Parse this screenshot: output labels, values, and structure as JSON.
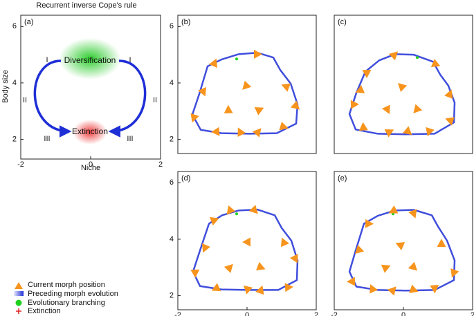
{
  "chart_data": [
    {
      "type": "schematic",
      "panel_label": "(a)",
      "title": "Recurrent inverse Cope's rule",
      "x_label": "Niche",
      "y_label": "Body size",
      "xlim": [
        -2,
        2
      ],
      "ylim": [
        1.3,
        6.4
      ],
      "xticks": [
        -2,
        0,
        2
      ],
      "yticks": [
        2,
        4,
        6
      ],
      "nodes": [
        "Diversification",
        "Extinction"
      ],
      "phase_labels": [
        "I",
        "II",
        "III"
      ]
    },
    {
      "type": "scatter",
      "panel_label": "(b)",
      "xlim": [
        -2,
        2
      ],
      "ylim": [
        1.5,
        6.4
      ],
      "yticks": [
        2,
        4,
        6
      ],
      "color": "#f7941d",
      "line_color": "#1f2fd6",
      "x": [
        -0.94,
        0.3,
        -1.26,
        -0.04,
        1.12,
        -0.54,
        0.36,
        1.42,
        -1.54,
        -0.9,
        -0.2,
        0.32,
        1.06
      ],
      "y": [
        4.71,
        5.02,
        3.68,
        3.88,
        3.88,
        3.05,
        3.05,
        3.17,
        2.76,
        2.27,
        2.27,
        2.27,
        2.44
      ],
      "trajectory": {
        "x": [
          -0.24,
          0.3,
          0.76,
          0.96,
          1.26,
          1.46,
          1.42,
          0.86,
          0.06,
          -0.74,
          -1.34,
          -1.58,
          -1.38,
          -1.14,
          -0.74,
          -0.24
        ],
        "y": [
          5.02,
          5.07,
          4.9,
          4.46,
          3.98,
          3.24,
          2.56,
          2.22,
          2.2,
          2.22,
          2.34,
          2.88,
          3.61,
          4.59,
          4.83,
          5.02
        ]
      },
      "branching": {
        "x": [
          -0.3
        ],
        "y": [
          4.85
        ]
      }
    },
    {
      "type": "scatter",
      "panel_label": "(c)",
      "xlim": [
        -2,
        2
      ],
      "ylim": [
        1.5,
        6.4
      ],
      "color": "#f7941d",
      "line_color": "#1f2fd6",
      "x": [
        -0.26,
        0.94,
        -1.06,
        -1.26,
        -0.06,
        1.34,
        -1.42,
        -0.46,
        0.38,
        1.34,
        -1.16,
        -0.4,
        0.14,
        0.74
      ],
      "y": [
        5.0,
        4.66,
        4.34,
        3.73,
        3.88,
        3.61,
        3.24,
        3.05,
        3.05,
        2.68,
        2.44,
        2.27,
        2.27,
        2.27
      ],
      "trajectory": {
        "x": [
          -0.24,
          0.3,
          0.86,
          1.06,
          1.3,
          1.48,
          1.46,
          0.9,
          0.06,
          -0.74,
          -1.38,
          -1.56,
          -1.36,
          -1.1,
          -0.7,
          -0.24
        ],
        "y": [
          5.02,
          5.0,
          4.75,
          4.3,
          3.9,
          3.3,
          2.6,
          2.2,
          2.18,
          2.2,
          2.35,
          2.9,
          3.65,
          4.4,
          4.8,
          5.02
        ]
      },
      "branching": {
        "x": [
          -0.3,
          0.4
        ],
        "y": [
          4.95,
          4.9
        ]
      }
    },
    {
      "type": "scatter",
      "panel_label": "(d)",
      "xlim": [
        -2,
        2
      ],
      "ylim": [
        1.5,
        6.4
      ],
      "xticks": [
        -2,
        0,
        2
      ],
      "yticks": [
        2,
        4,
        6
      ],
      "color": "#f7941d",
      "line_color": "#1f2fd6",
      "x": [
        -0.94,
        0.22,
        -1.22,
        0.0,
        1.06,
        -0.5,
        0.4,
        -1.5,
        -0.9,
        0.0,
        0.4,
        1.2,
        1.4,
        -0.5
      ],
      "y": [
        4.68,
        5.02,
        3.68,
        3.9,
        3.9,
        3.0,
        3.0,
        2.8,
        2.25,
        2.25,
        2.2,
        2.3,
        3.3,
        5.0
      ],
      "trajectory": {
        "x": [
          -0.24,
          0.3,
          0.8,
          1.0,
          1.28,
          1.46,
          1.44,
          0.9,
          0.06,
          -0.74,
          -1.36,
          -1.56,
          -1.36,
          -1.1,
          -0.72,
          -0.24
        ],
        "y": [
          5.02,
          5.05,
          4.85,
          4.4,
          3.95,
          3.25,
          2.55,
          2.2,
          2.2,
          2.22,
          2.34,
          2.85,
          3.6,
          4.55,
          4.85,
          5.02
        ]
      },
      "branching": {
        "x": [
          -0.3
        ],
        "y": [
          4.9
        ]
      }
    },
    {
      "type": "scatter",
      "panel_label": "(e)",
      "xlim": [
        -2,
        2
      ],
      "ylim": [
        1.5,
        6.4
      ],
      "xticks": [
        -2,
        0,
        2
      ],
      "color": "#f7941d",
      "line_color": "#1f2fd6",
      "x": [
        -1.0,
        0.3,
        -1.3,
        -0.1,
        1.1,
        -0.5,
        0.3,
        1.45,
        -1.5,
        -0.9,
        -0.3,
        0.3,
        0.9,
        -0.3
      ],
      "y": [
        4.55,
        4.9,
        3.6,
        3.8,
        3.85,
        3.0,
        3.0,
        2.8,
        2.5,
        2.25,
        2.2,
        2.2,
        2.25,
        5.0
      ],
      "trajectory": {
        "x": [
          -0.24,
          0.3,
          0.82,
          1.0,
          1.26,
          1.48,
          1.46,
          0.9,
          0.06,
          -0.74,
          -1.36,
          -1.56,
          -1.38,
          -1.14,
          -0.74,
          -0.24
        ],
        "y": [
          5.02,
          5.04,
          4.85,
          4.45,
          3.95,
          3.25,
          2.55,
          2.2,
          2.18,
          2.2,
          2.32,
          2.85,
          3.6,
          4.55,
          4.83,
          5.02
        ]
      },
      "branching": {
        "x": [
          -0.3
        ],
        "y": [
          4.9
        ]
      }
    }
  ],
  "legend": {
    "items": [
      "Current morph position",
      "Preceding morph evolution",
      "Evolutionary branching",
      "Extinction"
    ]
  }
}
